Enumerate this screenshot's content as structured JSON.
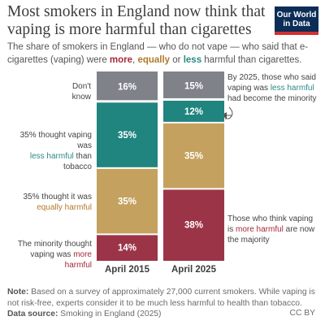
{
  "title": "Most smokers in England now think that vaping is more harmful than cigarettes",
  "logo": {
    "line1": "Our World",
    "line2": "in Data"
  },
  "subtitle": {
    "prefix": "The share of smokers in England — who do not vape — who said that e-cigarettes (vaping) were ",
    "more": "more",
    "sep1": ", ",
    "equally": "equally",
    "sep2": " or ",
    "less": "less",
    "suffix": " harmful than cigarettes."
  },
  "colors": {
    "dont_know": "#7f8389",
    "less": "#20847f",
    "equally": "#c4a15e",
    "more": "#9c3447",
    "accent_more": "#a52a3a",
    "accent_equal": "#b07a2c",
    "accent_less": "#2a8a86"
  },
  "left_labels": {
    "dont_know": "Don't know",
    "less_line1": "35% thought vaping was",
    "less_word": "less harmful",
    "less_tail": " than tobacco",
    "equal_line1": "35% thought it was",
    "equal_word": "equally harmful",
    "more_line1": "The minority thought",
    "more_prefix": "vaping was ",
    "more_word": "more harmful"
  },
  "right_labels": {
    "top_line1": "By 2025, those who said",
    "top_prefix": "vaping was ",
    "top_word": "less harmful",
    "top_line3": "had become the minority",
    "bottom_line1": "Those who think vaping",
    "bottom_prefix": "is ",
    "bottom_word": "more harmful",
    "bottom_tail": " are now",
    "bottom_line3": "the majority"
  },
  "chart_data": {
    "type": "bar",
    "stacked": true,
    "categories": [
      "April 2015",
      "April 2025"
    ],
    "series": [
      {
        "name": "More harmful",
        "values": [
          14,
          38
        ],
        "labels": [
          "14%",
          "38%"
        ]
      },
      {
        "name": "Equally harmful",
        "values": [
          35,
          35
        ],
        "labels": [
          "35%",
          "35%"
        ]
      },
      {
        "name": "Less harmful",
        "values": [
          35,
          12
        ],
        "labels": [
          "35%",
          "12%"
        ]
      },
      {
        "name": "Don't know",
        "values": [
          16,
          15
        ],
        "labels": [
          "16%",
          "15%"
        ]
      }
    ],
    "ylim": [
      0,
      100
    ]
  },
  "footer": {
    "note_label": "Note:",
    "note_text": " Based on a survey of approximately 27,000 current smokers. While vaping is not risk-free, experts consider it to be much less harmful to health than tobacco.",
    "source_label": "Data source:",
    "source_text": " Smoking in England (2025)",
    "license": "CC BY"
  }
}
